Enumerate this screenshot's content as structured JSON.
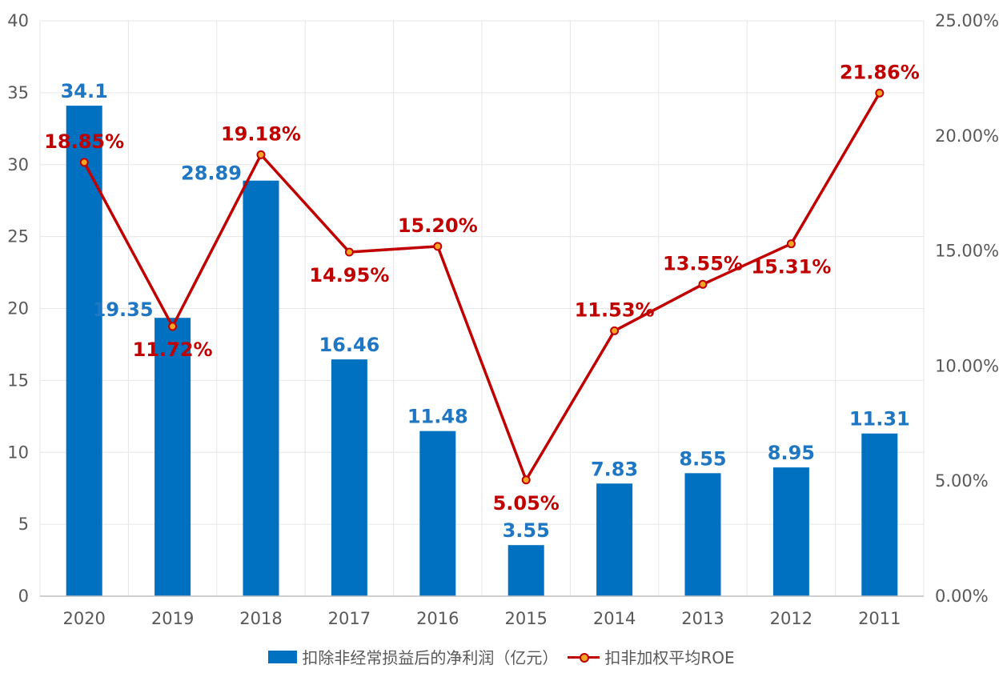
{
  "chart_data": {
    "type": "bar+line",
    "categories": [
      "2020",
      "2019",
      "2018",
      "2017",
      "2016",
      "2015",
      "2014",
      "2013",
      "2012",
      "2011"
    ],
    "series": [
      {
        "name": "扣除非经常损益后的净利润（亿元）",
        "type": "bar",
        "axis": "left",
        "color": "#0070c0",
        "values": [
          34.1,
          19.35,
          28.89,
          16.46,
          11.48,
          3.55,
          7.83,
          8.55,
          8.95,
          11.31
        ],
        "labels": [
          "34.1",
          "19.35",
          "28.89",
          "16.46",
          "11.48",
          "3.55",
          "7.83",
          "8.55",
          "8.95",
          "11.31"
        ]
      },
      {
        "name": "扣非加权平均ROE",
        "type": "line",
        "axis": "right",
        "color": "#c00000",
        "marker_color": "#f5a623",
        "values": [
          18.85,
          11.72,
          19.18,
          14.95,
          15.2,
          5.05,
          11.53,
          13.55,
          15.31,
          21.86
        ],
        "labels": [
          "18.85%",
          "11.72%",
          "19.18%",
          "14.95%",
          "15.20%",
          "5.05%",
          "11.53%",
          "13.55%",
          "15.31%",
          "21.86%"
        ],
        "label_pos": [
          "above",
          "below",
          "above",
          "below",
          "above",
          "below",
          "above",
          "above",
          "below",
          "above"
        ]
      }
    ],
    "y_left": {
      "ylim": [
        0,
        40
      ],
      "ticks": [
        "0",
        "5",
        "10",
        "15",
        "20",
        "25",
        "30",
        "35",
        "40"
      ]
    },
    "y_right": {
      "ylim": [
        0,
        25
      ],
      "ticks": [
        "0.00%",
        "5.00%",
        "10.00%",
        "15.00%",
        "20.00%",
        "25.00%"
      ]
    },
    "grid": true,
    "legend": "bottom"
  }
}
